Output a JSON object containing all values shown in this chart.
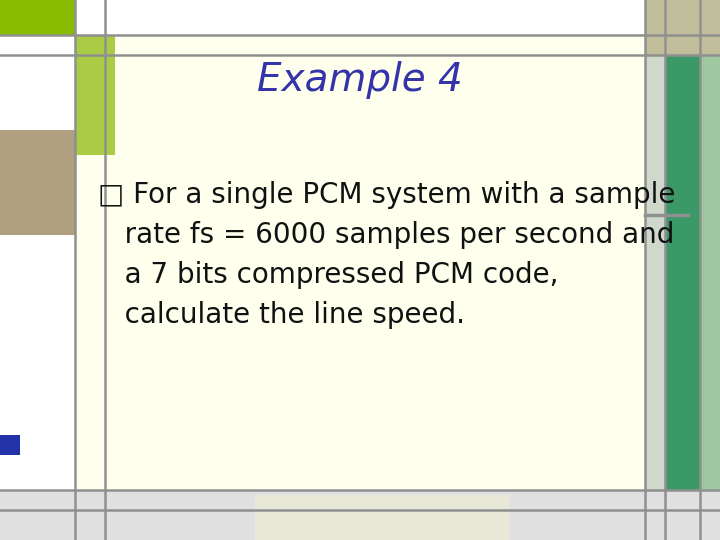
{
  "title": "Example 4",
  "title_color": "#3333aa",
  "title_fontsize": 28,
  "lines": [
    "□ For a single PCM system with a sample",
    "   rate fs = 6000 samples per second and",
    "   a 7 bits compressed PCM code,",
    "   calculate the line speed."
  ],
  "body_fontsize": 20,
  "body_color": "#111111",
  "main_bg": "#ffffee",
  "outer_bg": "#f0f0f0",
  "gray": "#909090",
  "white": "#ffffff",
  "green_bright": "#88bb00",
  "green_light": "#aacb44",
  "tan_brown": "#b0a080",
  "tan_top_right": "#c0be9a",
  "right_green_teal": "#3a9966",
  "right_green_light": "#a0c8a0",
  "blue_bar": "#2233aa",
  "bottom_rect_bg": "#e8e8d8"
}
